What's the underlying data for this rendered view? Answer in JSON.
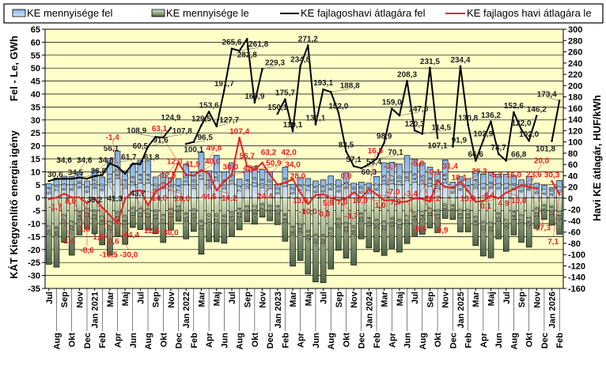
{
  "legend": {
    "up": "KE mennyisége fel",
    "down": "KE mennyisége le",
    "avg_up": "KE fajlagoshavi átlagára fel",
    "avg_down": "KE fajlagos havi átlagára le"
  },
  "colors": {
    "plot_bg": "#ffffc8",
    "bar_up": "#9cc4f0",
    "bar_down": "#5e7458",
    "line_up": "#000000",
    "line_down": "#e82020"
  },
  "chart_data": {
    "type": "bar+line",
    "title": "",
    "ylabel_left_top": "Fel - Le, GWh",
    "ylabel_left_bottom": "KÁT Kiegyenlítő energia igény",
    "ylabel_right": "Havi KE átlagár, HUF/kWh",
    "ylim_left": [
      -35,
      65
    ],
    "yticks_left": [
      65,
      60,
      55,
      50,
      45,
      40,
      35,
      30,
      25,
      20,
      15,
      10,
      5,
      0,
      -5,
      -10,
      -15,
      -20,
      -25,
      -30,
      -35
    ],
    "ylim_right": [
      -160,
      300
    ],
    "yticks_right": [
      300,
      280,
      260,
      240,
      220,
      200,
      180,
      160,
      140,
      120,
      100,
      80,
      60,
      40,
      20,
      0,
      -20,
      -40,
      -60,
      -80,
      -100,
      -120,
      -140,
      -160
    ],
    "grid": true,
    "legend_position": "top",
    "categories": [
      "Jul",
      "Aug",
      "Sep",
      "Okt",
      "Nov",
      "Dec",
      "Jan 2021",
      "Feb",
      "Mar",
      "Apr",
      "Maj",
      "Jun",
      "Jul",
      "Aug",
      "Sep",
      "Okt",
      "Nov",
      "Dec",
      "Jan 2022",
      "Feb",
      "Mar",
      "Apr",
      "Maj",
      "Jun",
      "Jul",
      "Aug",
      "Sep",
      "Okt",
      "Nov",
      "Dec",
      "Jan 2023",
      "Feb",
      "Mar",
      "Apr",
      "Maj",
      "Jun",
      "Jul",
      "Aug",
      "Sep",
      "Okt",
      "Nov",
      "Dec",
      "Jan 2024",
      "Feb",
      "Mar",
      "Apr",
      "Maj",
      "Jun",
      "Jul",
      "Aug",
      "Sep",
      "Okt",
      "Nov",
      "Dec",
      "Jan 2025",
      "Feb",
      "Mar",
      "Apr",
      "Maj",
      "Jun",
      "Jul",
      "Aug",
      "Sep",
      "Okt",
      "Nov",
      "Dec",
      "Jan 2026",
      "Feb"
    ],
    "series": [
      {
        "name": "KE mennyisége fel",
        "type": "bar",
        "axis": "left",
        "values": [
          5.4,
          7.6,
          8.3,
          8.1,
          9.8,
          6.5,
          10.7,
          8,
          15.1,
          18,
          10.4,
          12.8,
          14.4,
          14.4,
          8,
          9.3,
          7.5,
          7.4,
          13,
          10,
          17.5,
          10.4,
          16.4,
          10,
          13.5,
          7.2,
          10.4,
          12,
          10.9,
          10,
          5.2,
          11.8,
          5.2,
          7.8,
          7.4,
          6.5,
          6.9,
          8.4,
          6.9,
          9.5,
          5.6,
          6,
          5.6,
          8.2,
          13.5,
          13.7,
          13,
          16.3,
          14.9,
          13.5,
          11.8,
          10,
          14.6,
          6,
          8.1,
          7.4,
          10.4,
          9.1,
          9.6,
          9.1,
          9.1,
          8.6,
          6.9,
          8.2,
          5.6,
          4.7,
          4,
          6.7
        ]
      },
      {
        "name": "KE mennyisége le",
        "type": "bar",
        "axis": "left",
        "values": [
          -25.7,
          -26.8,
          -17.2,
          -22.2,
          -14.4,
          -12.2,
          -13.9,
          -18.2,
          -22.2,
          -15,
          -18,
          -11.5,
          -12.3,
          -12.5,
          -13.9,
          -17.3,
          -12.5,
          -9.1,
          -15.9,
          -13,
          -21.8,
          -17,
          -17,
          -17.6,
          -15,
          -12.4,
          -9.3,
          -10.2,
          -7.5,
          -8.9,
          -10.4,
          -16.8,
          -26.4,
          -24.2,
          -29.5,
          -32.5,
          -32.8,
          -27.5,
          -20.3,
          -23.3,
          -26,
          -15.9,
          -19.4,
          -20.9,
          -22.3,
          -19.6,
          -21,
          -17.7,
          -14.7,
          -14.1,
          -11.7,
          -13.5,
          -8,
          -8.4,
          -13.2,
          -13.2,
          -18.5,
          -22.5,
          -23.2,
          -15.9,
          -20.7,
          -14.4,
          -17.2,
          -19.1,
          -11.9,
          -8.4,
          -10.6,
          -14.1
        ]
      },
      {
        "name": "KE fajlagoshavi átlagára fel",
        "type": "line",
        "axis": "right",
        "values": [
          30.6,
          34.5,
          34.6,
          34.6,
          36.8,
          34.8,
          39.2,
          41.3,
          61.7,
          56.1,
          43.7,
          61.8,
          60.5,
          91.6,
          108.9,
          107.8,
          124.9,
          null,
          96.5,
          100.1,
          129.5,
          153.6,
          127.7,
          191.7,
          265.6,
          261.8,
          282.8,
          169.9,
          229.3,
          null,
          150.1,
          175.7,
          119.1,
          234.8,
          271.2,
          131.1,
          193.1,
          188.8,
          152.0,
          83.5,
          57.1,
          53.4,
          60.3,
          70.1,
          98.9,
          159.0,
          147.0,
          208.3,
          120.3,
          114.5,
          231.5,
          107.1,
          null,
          91.9,
          234.4,
          130.8,
          66.6,
          102.9,
          136.2,
          78.7,
          66.8,
          152.6,
          122.0,
          102.0,
          146.2,
          null,
          101.8,
          173.4
        ]
      },
      {
        "name": "KE fajlagos havi átlagára le",
        "type": "line",
        "axis": "right",
        "values": [
          -1.7,
          1.4,
          8,
          1.6,
          1.6,
          -8.6,
          0.6,
          -16.5,
          -30,
          -44.4,
          -1.4,
          12.5,
          14,
          -12.5,
          12,
          20,
          30,
          63.1,
          41.9,
          40,
          49.8,
          44.5,
          14.2,
          30,
          42.0,
          107.4,
          56.7,
          50.9,
          63.2,
          42.0,
          24.4,
          28,
          34,
          10,
          -10,
          5.8,
          7,
          0,
          -3.7,
          0,
          10,
          1,
          16.5,
          7,
          -3.7,
          -3.4,
          -7,
          -5.6,
          -0.1,
          -0.9,
          -5.8,
          31.4,
          20.2,
          18.1,
          29.3,
          13,
          -6.1,
          -5.2,
          4.9,
          0.1,
          10,
          16,
          23.6,
          20,
          17.3,
          null,
          30.3,
          7.1
        ]
      }
    ]
  }
}
